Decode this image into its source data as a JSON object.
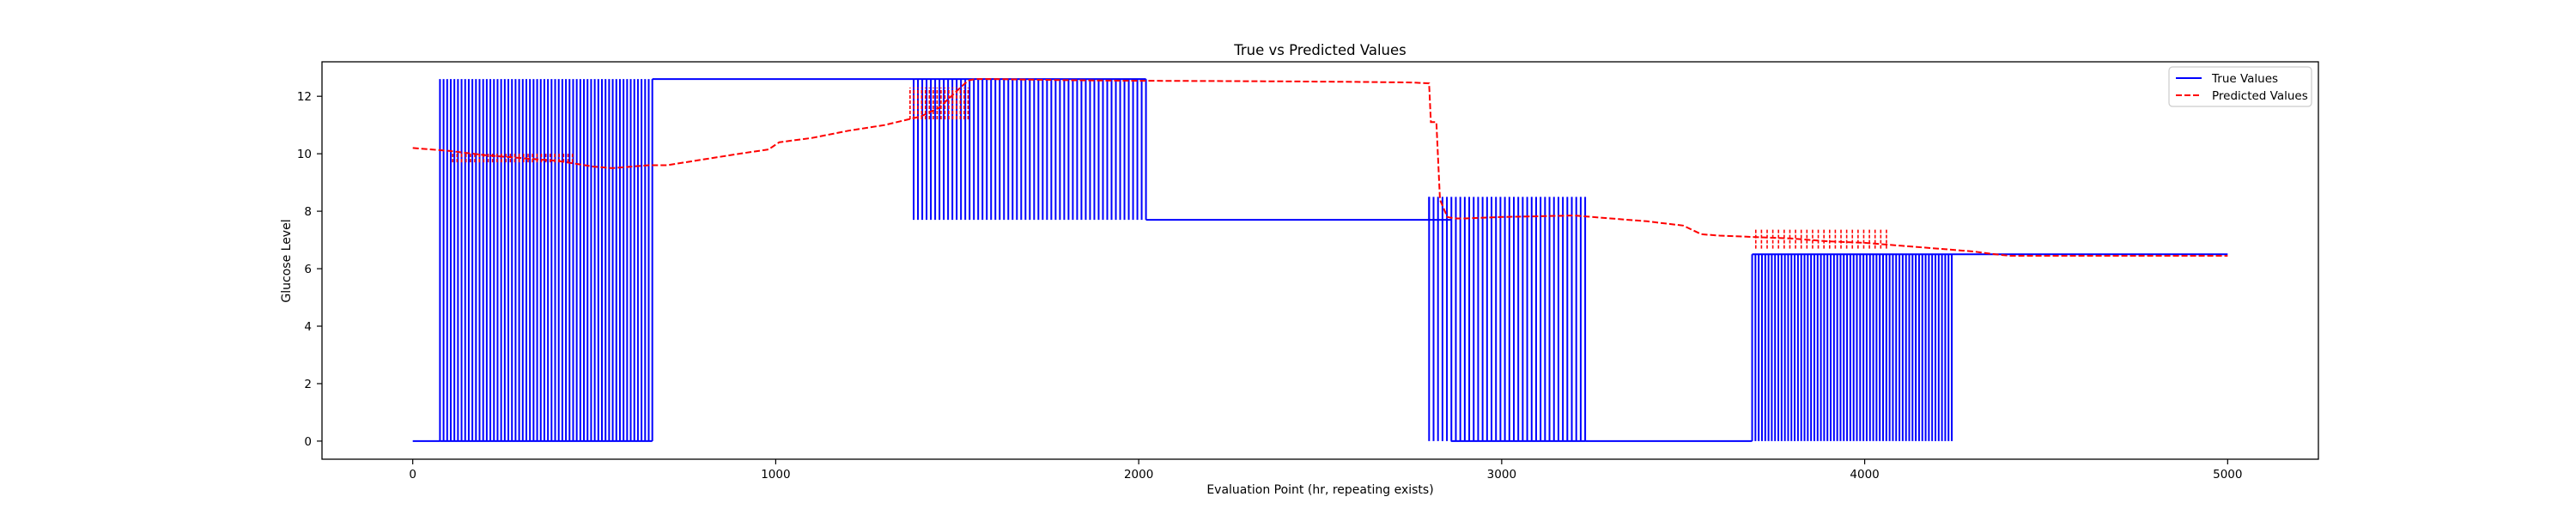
{
  "chart_data": {
    "type": "line",
    "title": "True vs Predicted Values",
    "xlabel": "Evaluation Point (hr, repeating exists)",
    "ylabel": "Glucose Level",
    "xlim": [
      -250,
      5250
    ],
    "ylim": [
      -0.63,
      13.2
    ],
    "x_ticks": [
      0,
      1000,
      2000,
      3000,
      4000,
      5000
    ],
    "y_ticks": [
      0,
      2,
      4,
      6,
      8,
      10,
      12
    ],
    "grid": false,
    "legend_position": "top-right",
    "series": [
      {
        "name": "True Values",
        "color": "#0000ff",
        "style": "solid",
        "baseline_segments": [
          {
            "x": [
              0,
              75
            ],
            "y": 0
          },
          {
            "x": [
              75,
              660
            ],
            "y": 0
          },
          {
            "x": [
              660,
              1380
            ],
            "y": 12.6
          },
          {
            "x": [
              1380,
              2020
            ],
            "y": 12.6
          },
          {
            "x": [
              2020,
              2800
            ],
            "y": 7.7
          },
          {
            "x": [
              2800,
              2860
            ],
            "y": 7.7
          },
          {
            "x": [
              2860,
              3230
            ],
            "y": 0
          },
          {
            "x": [
              3230,
              3690
            ],
            "y": 0
          },
          {
            "x": [
              3690,
              4240
            ],
            "y": 6.5
          },
          {
            "x": [
              4240,
              5000
            ],
            "y": 6.5
          }
        ],
        "oscillation_bursts": [
          {
            "x_start": 75,
            "x_end": 660,
            "low": 0,
            "high": 12.6,
            "count": 60
          },
          {
            "x_start": 1380,
            "x_end": 2020,
            "low": 7.7,
            "high": 12.6,
            "count": 55
          },
          {
            "x_start": 2800,
            "x_end": 3230,
            "low": 0,
            "high": 8.5,
            "count": 36
          },
          {
            "x_start": 3690,
            "x_end": 4240,
            "low": 0,
            "high": 6.5,
            "count": 62
          }
        ]
      },
      {
        "name": "Predicted Values",
        "color": "#ff0000",
        "style": "dashed",
        "x": [
          0,
          100,
          200,
          300,
          400,
          500,
          550,
          650,
          700,
          800,
          900,
          980,
          1010,
          1100,
          1200,
          1300,
          1400,
          1450,
          1500,
          1530,
          1550,
          1600,
          1700,
          1800,
          1900,
          2000,
          2200,
          2400,
          2600,
          2750,
          2800,
          2805,
          2820,
          2830,
          2850,
          2870,
          2900,
          3000,
          3200,
          3300,
          3400,
          3500,
          3550,
          3600,
          3700,
          3800,
          3900,
          4000,
          4100,
          4200,
          4300,
          4360,
          4400,
          4500,
          4600,
          4700,
          4800,
          4900,
          5000
        ],
        "y": [
          10.2,
          10.1,
          9.95,
          9.85,
          9.75,
          9.55,
          9.5,
          9.6,
          9.6,
          9.8,
          10.0,
          10.15,
          10.4,
          10.55,
          10.8,
          11.0,
          11.3,
          11.6,
          12.2,
          12.55,
          12.6,
          12.6,
          12.58,
          12.56,
          12.55,
          12.54,
          12.53,
          12.52,
          12.5,
          12.48,
          12.45,
          11.1,
          11.1,
          8.4,
          7.8,
          7.75,
          7.75,
          7.8,
          7.85,
          7.75,
          7.65,
          7.5,
          7.2,
          7.15,
          7.1,
          7.05,
          6.95,
          6.9,
          6.8,
          6.7,
          6.6,
          6.5,
          6.45,
          6.45,
          6.45,
          6.45,
          6.45,
          6.45,
          6.45
        ],
        "noise_bursts": [
          {
            "x_start": 110,
            "x_end": 440,
            "low": 9.7,
            "high": 10.05,
            "count": 28
          },
          {
            "x_start": 1370,
            "x_end": 1530,
            "low": 11.2,
            "high": 12.3,
            "count": 16
          },
          {
            "x_start": 3700,
            "x_end": 4060,
            "low": 6.7,
            "high": 7.4,
            "count": 24
          }
        ]
      }
    ]
  }
}
